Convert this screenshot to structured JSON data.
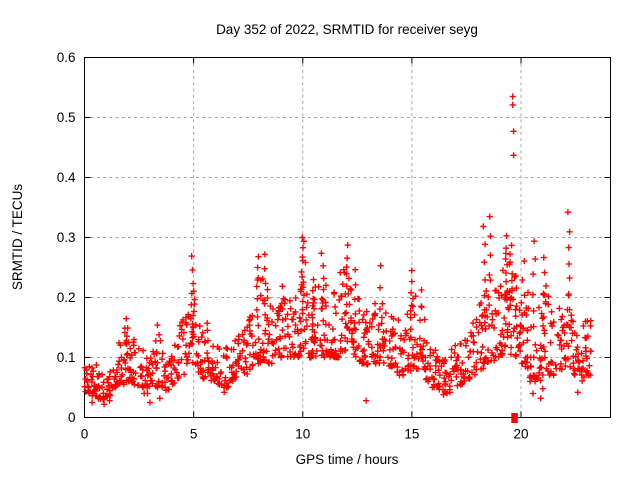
{
  "title": "Day 352 of 2022, SRMTID for receiver seyg",
  "axes": {
    "x": {
      "label": "GPS time / hours",
      "min": 0,
      "max": 24,
      "tick_values": [
        0,
        5,
        10,
        15,
        20
      ],
      "tick_labels": [
        "0",
        "5",
        "10",
        "15",
        "20"
      ]
    },
    "y": {
      "label": "SRMTID / TECUs",
      "min": 0,
      "max": 0.6,
      "tick_values": [
        0,
        0.1,
        0.2,
        0.3,
        0.4,
        0.5,
        0.6
      ],
      "tick_labels": [
        "0",
        "0.1",
        "0.2",
        "0.3",
        "0.4",
        "0.5",
        "0.6"
      ]
    }
  },
  "colors": {
    "points": "#ff0000",
    "grid": "#a6a6a6",
    "axis": "#000000",
    "background": "#ffffff"
  },
  "chart_data": {
    "type": "scatter",
    "marker": "plus",
    "title": "Day 352 of 2022, SRMTID for receiver seyg",
    "xlabel": "GPS time / hours",
    "ylabel": "SRMTID / TECUs",
    "xlim": [
      0,
      24
    ],
    "ylim": [
      0,
      0.6
    ],
    "grid": "dashed-major",
    "x_range_of_data": [
      0,
      23.25
    ],
    "bands_hourLo_hourHi_valLo_valHi_count": [
      [
        0.0,
        0.3,
        0.04,
        0.085,
        16
      ],
      [
        0.3,
        0.6,
        0.035,
        0.09,
        18
      ],
      [
        0.6,
        0.9,
        0.03,
        0.075,
        16
      ],
      [
        0.9,
        1.2,
        0.035,
        0.085,
        16
      ],
      [
        1.2,
        1.5,
        0.05,
        0.11,
        14
      ],
      [
        1.5,
        1.8,
        0.055,
        0.125,
        16
      ],
      [
        1.8,
        2.1,
        0.06,
        0.155,
        18
      ],
      [
        2.1,
        2.4,
        0.055,
        0.13,
        16
      ],
      [
        2.4,
        2.7,
        0.05,
        0.115,
        14
      ],
      [
        2.7,
        3.0,
        0.04,
        0.105,
        14
      ],
      [
        3.0,
        3.3,
        0.05,
        0.13,
        14
      ],
      [
        3.3,
        3.6,
        0.05,
        0.145,
        14
      ],
      [
        3.6,
        3.9,
        0.045,
        0.115,
        13
      ],
      [
        3.9,
        4.2,
        0.055,
        0.14,
        14
      ],
      [
        4.2,
        4.5,
        0.065,
        0.16,
        14
      ],
      [
        4.5,
        4.8,
        0.07,
        0.185,
        15
      ],
      [
        4.8,
        5.1,
        0.08,
        0.22,
        16
      ],
      [
        5.1,
        5.4,
        0.075,
        0.17,
        15
      ],
      [
        5.4,
        5.7,
        0.065,
        0.15,
        14
      ],
      [
        5.7,
        6.0,
        0.06,
        0.135,
        14
      ],
      [
        6.0,
        6.3,
        0.055,
        0.12,
        14
      ],
      [
        6.3,
        6.6,
        0.05,
        0.12,
        14
      ],
      [
        6.6,
        6.9,
        0.06,
        0.13,
        14
      ],
      [
        6.9,
        7.2,
        0.065,
        0.14,
        14
      ],
      [
        7.2,
        7.5,
        0.07,
        0.155,
        14
      ],
      [
        7.5,
        7.8,
        0.08,
        0.19,
        15
      ],
      [
        7.8,
        8.1,
        0.09,
        0.235,
        16
      ],
      [
        8.1,
        8.4,
        0.095,
        0.24,
        16
      ],
      [
        8.4,
        8.7,
        0.09,
        0.19,
        15
      ],
      [
        8.7,
        9.0,
        0.1,
        0.2,
        15
      ],
      [
        9.0,
        9.3,
        0.1,
        0.22,
        16
      ],
      [
        9.3,
        9.6,
        0.1,
        0.21,
        15
      ],
      [
        9.6,
        9.9,
        0.1,
        0.225,
        16
      ],
      [
        9.9,
        10.2,
        0.11,
        0.26,
        18
      ],
      [
        10.2,
        10.5,
        0.1,
        0.22,
        16
      ],
      [
        10.5,
        10.8,
        0.1,
        0.22,
        15
      ],
      [
        10.8,
        11.1,
        0.1,
        0.24,
        16
      ],
      [
        11.1,
        11.4,
        0.1,
        0.215,
        15
      ],
      [
        11.4,
        11.7,
        0.1,
        0.22,
        15
      ],
      [
        11.7,
        12.0,
        0.11,
        0.25,
        16
      ],
      [
        12.0,
        12.3,
        0.11,
        0.25,
        16
      ],
      [
        12.3,
        12.6,
        0.1,
        0.23,
        15
      ],
      [
        12.6,
        12.9,
        0.09,
        0.19,
        15
      ],
      [
        12.9,
        13.2,
        0.085,
        0.195,
        15
      ],
      [
        13.2,
        13.5,
        0.09,
        0.2,
        15
      ],
      [
        13.5,
        13.8,
        0.09,
        0.21,
        15
      ],
      [
        13.8,
        14.1,
        0.08,
        0.175,
        14
      ],
      [
        14.1,
        14.4,
        0.075,
        0.165,
        14
      ],
      [
        14.4,
        14.7,
        0.07,
        0.155,
        14
      ],
      [
        14.7,
        15.0,
        0.075,
        0.185,
        14
      ],
      [
        15.0,
        15.3,
        0.08,
        0.21,
        15
      ],
      [
        15.3,
        15.6,
        0.08,
        0.195,
        14
      ],
      [
        15.6,
        15.9,
        0.06,
        0.14,
        14
      ],
      [
        15.9,
        16.2,
        0.05,
        0.12,
        14
      ],
      [
        16.2,
        16.5,
        0.045,
        0.115,
        14
      ],
      [
        16.5,
        16.8,
        0.04,
        0.11,
        14
      ],
      [
        16.8,
        17.1,
        0.05,
        0.12,
        14
      ],
      [
        17.1,
        17.4,
        0.055,
        0.125,
        14
      ],
      [
        17.4,
        17.7,
        0.06,
        0.145,
        14
      ],
      [
        17.7,
        18.0,
        0.07,
        0.165,
        14
      ],
      [
        18.0,
        18.3,
        0.08,
        0.21,
        15
      ],
      [
        18.3,
        18.6,
        0.09,
        0.25,
        16
      ],
      [
        18.6,
        18.9,
        0.095,
        0.23,
        15
      ],
      [
        18.9,
        19.2,
        0.1,
        0.25,
        16
      ],
      [
        19.2,
        19.5,
        0.11,
        0.28,
        18
      ],
      [
        19.5,
        19.8,
        0.1,
        0.26,
        18
      ],
      [
        19.8,
        20.1,
        0.09,
        0.24,
        16
      ],
      [
        20.1,
        20.4,
        0.08,
        0.22,
        15
      ],
      [
        20.4,
        20.7,
        0.06,
        0.2,
        15
      ],
      [
        20.7,
        21.0,
        0.06,
        0.19,
        15
      ],
      [
        21.0,
        21.3,
        0.07,
        0.22,
        15
      ],
      [
        21.3,
        21.6,
        0.07,
        0.18,
        14
      ],
      [
        21.6,
        21.9,
        0.08,
        0.185,
        14
      ],
      [
        21.9,
        22.2,
        0.085,
        0.21,
        15
      ],
      [
        22.2,
        22.5,
        0.07,
        0.185,
        14
      ],
      [
        22.5,
        22.8,
        0.06,
        0.17,
        14
      ],
      [
        22.8,
        23.0,
        0.06,
        0.16,
        12
      ],
      [
        23.0,
        23.25,
        0.07,
        0.165,
        12
      ]
    ],
    "spike_columns_hour_valFrom_valTo_count": [
      [
        1.95,
        0.12,
        0.165,
        4
      ],
      [
        3.3,
        0.11,
        0.15,
        3
      ],
      [
        4.95,
        0.13,
        0.265,
        8
      ],
      [
        5.65,
        0.11,
        0.16,
        4
      ],
      [
        7.95,
        0.15,
        0.265,
        8
      ],
      [
        8.3,
        0.17,
        0.275,
        5
      ],
      [
        10.0,
        0.18,
        0.302,
        12
      ],
      [
        10.45,
        0.15,
        0.23,
        5
      ],
      [
        10.9,
        0.16,
        0.27,
        7
      ],
      [
        12.0,
        0.16,
        0.285,
        9
      ],
      [
        12.4,
        0.15,
        0.25,
        5
      ],
      [
        13.6,
        0.13,
        0.25,
        5
      ],
      [
        15.0,
        0.13,
        0.245,
        7
      ],
      [
        15.4,
        0.13,
        0.215,
        4
      ],
      [
        18.3,
        0.15,
        0.315,
        7
      ],
      [
        18.55,
        0.2,
        0.335,
        5
      ],
      [
        19.35,
        0.18,
        0.3,
        9
      ],
      [
        19.55,
        0.2,
        0.285,
        7
      ],
      [
        20.1,
        0.15,
        0.26,
        5
      ],
      [
        20.6,
        0.12,
        0.295,
        7
      ],
      [
        21.1,
        0.14,
        0.27,
        6
      ],
      [
        22.2,
        0.15,
        0.34,
        8
      ]
    ],
    "outlier_points": [
      [
        19.62,
        0.535
      ],
      [
        19.62,
        0.521
      ],
      [
        19.66,
        0.477
      ],
      [
        19.66,
        0.437
      ]
    ],
    "low_stray_points": [
      [
        0.35,
        0.025
      ],
      [
        0.9,
        0.022
      ],
      [
        1.15,
        0.028
      ],
      [
        3.0,
        0.025
      ],
      [
        3.45,
        0.032
      ],
      [
        6.4,
        0.042
      ],
      [
        12.9,
        0.028
      ],
      [
        16.45,
        0.038
      ],
      [
        20.55,
        0.04
      ],
      [
        20.9,
        0.032
      ],
      [
        21.0,
        0.048
      ],
      [
        22.6,
        0.042
      ]
    ],
    "special_marker": {
      "shape": "filled-square",
      "x": 19.7,
      "y": 0
    }
  }
}
